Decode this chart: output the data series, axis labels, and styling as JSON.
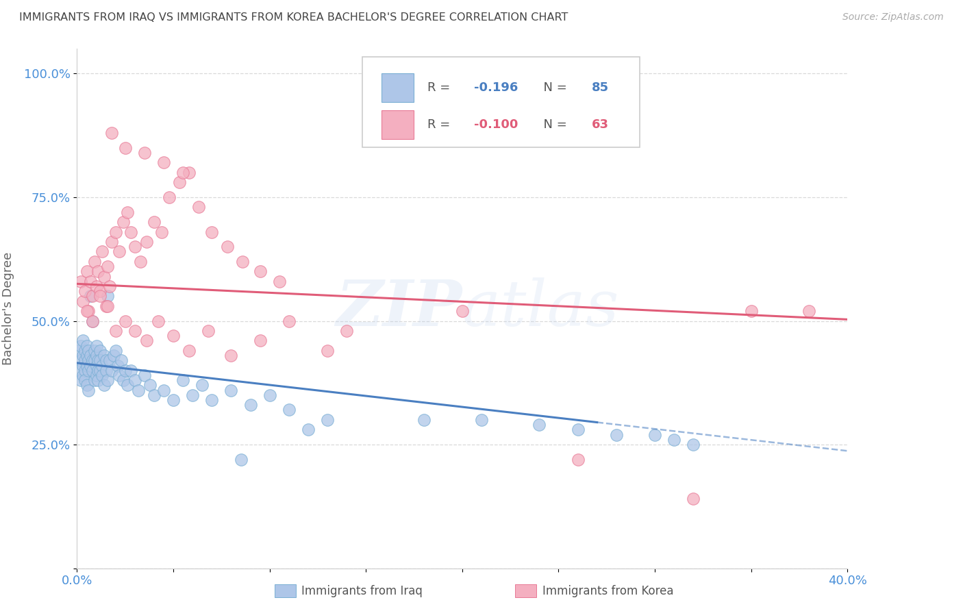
{
  "title": "IMMIGRANTS FROM IRAQ VS IMMIGRANTS FROM KOREA BACHELOR'S DEGREE CORRELATION CHART",
  "source": "Source: ZipAtlas.com",
  "ylabel_label": "Bachelor's Degree",
  "x_min": 0.0,
  "x_max": 0.4,
  "y_min": 0.0,
  "y_max": 1.05,
  "iraq_R": -0.196,
  "iraq_N": 85,
  "korea_R": -0.1,
  "korea_N": 63,
  "iraq_color": "#aec6e8",
  "iraq_edge_color": "#7aafd4",
  "korea_color": "#f4afc0",
  "korea_edge_color": "#e87a96",
  "iraq_line_color": "#4a7fc1",
  "korea_line_color": "#e05c78",
  "grid_color": "#d0d0d0",
  "axis_label_color": "#4a90d9",
  "title_color": "#444444",
  "watermark": "ZIPatlas",
  "iraq_x": [
    0.001,
    0.001,
    0.002,
    0.002,
    0.002,
    0.003,
    0.003,
    0.003,
    0.003,
    0.004,
    0.004,
    0.004,
    0.004,
    0.005,
    0.005,
    0.005,
    0.005,
    0.006,
    0.006,
    0.006,
    0.006,
    0.007,
    0.007,
    0.007,
    0.008,
    0.008,
    0.008,
    0.009,
    0.009,
    0.009,
    0.01,
    0.01,
    0.01,
    0.01,
    0.011,
    0.011,
    0.011,
    0.012,
    0.012,
    0.012,
    0.013,
    0.013,
    0.014,
    0.014,
    0.015,
    0.015,
    0.016,
    0.016,
    0.017,
    0.018,
    0.019,
    0.02,
    0.021,
    0.022,
    0.023,
    0.024,
    0.025,
    0.026,
    0.028,
    0.03,
    0.032,
    0.035,
    0.038,
    0.04,
    0.045,
    0.05,
    0.055,
    0.06,
    0.065,
    0.07,
    0.08,
    0.085,
    0.09,
    0.1,
    0.11,
    0.12,
    0.13,
    0.18,
    0.21,
    0.24,
    0.26,
    0.28,
    0.3,
    0.31,
    0.32
  ],
  "iraq_y": [
    0.4,
    0.44,
    0.42,
    0.45,
    0.38,
    0.43,
    0.41,
    0.39,
    0.46,
    0.44,
    0.42,
    0.4,
    0.38,
    0.43,
    0.41,
    0.45,
    0.37,
    0.44,
    0.42,
    0.4,
    0.36,
    0.43,
    0.41,
    0.55,
    0.42,
    0.4,
    0.5,
    0.44,
    0.42,
    0.38,
    0.43,
    0.41,
    0.39,
    0.45,
    0.42,
    0.4,
    0.38,
    0.44,
    0.4,
    0.42,
    0.41,
    0.39,
    0.43,
    0.37,
    0.42,
    0.4,
    0.55,
    0.38,
    0.42,
    0.4,
    0.43,
    0.44,
    0.41,
    0.39,
    0.42,
    0.38,
    0.4,
    0.37,
    0.4,
    0.38,
    0.36,
    0.39,
    0.37,
    0.35,
    0.36,
    0.34,
    0.38,
    0.35,
    0.37,
    0.34,
    0.36,
    0.22,
    0.33,
    0.35,
    0.32,
    0.28,
    0.3,
    0.3,
    0.3,
    0.29,
    0.28,
    0.27,
    0.27,
    0.26,
    0.25
  ],
  "korea_x": [
    0.002,
    0.003,
    0.004,
    0.005,
    0.006,
    0.007,
    0.008,
    0.009,
    0.01,
    0.011,
    0.012,
    0.013,
    0.014,
    0.015,
    0.016,
    0.017,
    0.018,
    0.02,
    0.022,
    0.024,
    0.026,
    0.028,
    0.03,
    0.033,
    0.036,
    0.04,
    0.044,
    0.048,
    0.053,
    0.058,
    0.063,
    0.07,
    0.078,
    0.086,
    0.095,
    0.105,
    0.005,
    0.008,
    0.012,
    0.016,
    0.02,
    0.025,
    0.03,
    0.036,
    0.042,
    0.05,
    0.058,
    0.068,
    0.08,
    0.095,
    0.11,
    0.13,
    0.018,
    0.025,
    0.035,
    0.045,
    0.055,
    0.14,
    0.2,
    0.26,
    0.32,
    0.35,
    0.38
  ],
  "korea_y": [
    0.58,
    0.54,
    0.56,
    0.6,
    0.52,
    0.58,
    0.55,
    0.62,
    0.57,
    0.6,
    0.56,
    0.64,
    0.59,
    0.53,
    0.61,
    0.57,
    0.66,
    0.68,
    0.64,
    0.7,
    0.72,
    0.68,
    0.65,
    0.62,
    0.66,
    0.7,
    0.68,
    0.75,
    0.78,
    0.8,
    0.73,
    0.68,
    0.65,
    0.62,
    0.6,
    0.58,
    0.52,
    0.5,
    0.55,
    0.53,
    0.48,
    0.5,
    0.48,
    0.46,
    0.5,
    0.47,
    0.44,
    0.48,
    0.43,
    0.46,
    0.5,
    0.44,
    0.88,
    0.85,
    0.84,
    0.82,
    0.8,
    0.48,
    0.52,
    0.22,
    0.14,
    0.52,
    0.52
  ]
}
